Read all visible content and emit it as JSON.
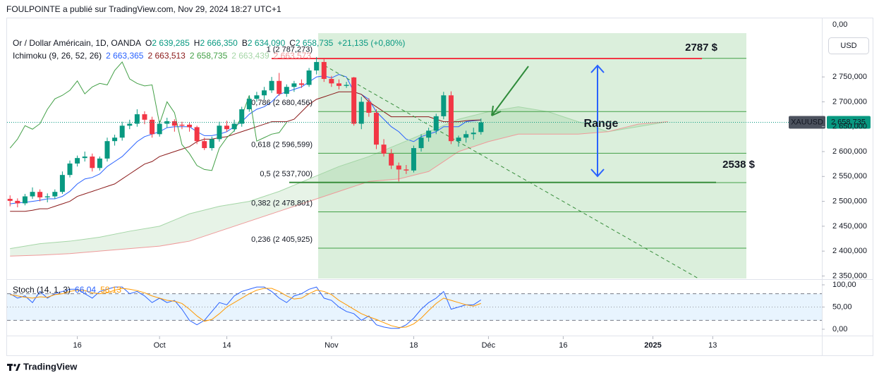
{
  "header": "FOULPOINTE a publié sur TradingView.com, Nov 29, 2024 18:27 UTC+1",
  "footer": "TradingView",
  "currency": "USD",
  "top_axis_label": "0,00",
  "chart_data": [
    {
      "type": "candlestick",
      "title": "Or / Dollar Américain, 1D, OANDA",
      "ohlc": [
        {
          "key": "O",
          "value": "2 639,285"
        },
        {
          "key": "H",
          "value": "2 666,350"
        },
        {
          "key": "B",
          "value": "2 634,090"
        },
        {
          "key": "C",
          "value": "2 658,735"
        }
      ],
      "change": "+21,135 (+0,80%)",
      "up_color": "#089981",
      "down_color": "#f23645",
      "open": [
        2505,
        2501,
        2496,
        2510,
        2519,
        2508,
        2510,
        2519,
        2553,
        2576,
        2587,
        2590,
        2567,
        2586,
        2621,
        2628,
        2652,
        2656,
        2675,
        2664,
        2635,
        2656,
        2661,
        2654,
        2654,
        2649,
        2621,
        2607,
        2625,
        2652,
        2645,
        2656,
        2685,
        2706,
        2713,
        2723,
        2742,
        2716,
        2730,
        2737,
        2734,
        2763,
        2780,
        2746,
        2737,
        2732,
        2749,
        2656,
        2700,
        2678,
        2614,
        2596,
        2572,
        2564,
        2562,
        2607,
        2628,
        2642,
        2671,
        2713,
        2621,
        2628,
        2635,
        2639.285
      ],
      "high": [
        2512,
        2506,
        2515,
        2528,
        2524,
        2516,
        2524,
        2560,
        2582,
        2592,
        2600,
        2596,
        2590,
        2628,
        2634,
        2660,
        2664,
        2685,
        2681,
        2670,
        2662,
        2668,
        2665,
        2660,
        2658,
        2652,
        2628,
        2630,
        2660,
        2662,
        2664,
        2690,
        2712,
        2720,
        2730,
        2750,
        2758,
        2735,
        2742,
        2745,
        2768,
        2790,
        2788,
        2752,
        2745,
        2740,
        2750,
        2710,
        2707,
        2685,
        2625,
        2605,
        2578,
        2573,
        2612,
        2635,
        2648,
        2676,
        2720,
        2721,
        2632,
        2642,
        2648,
        2666.35
      ],
      "low": [
        2490,
        2488,
        2492,
        2505,
        2500,
        2498,
        2505,
        2515,
        2548,
        2570,
        2580,
        2560,
        2562,
        2580,
        2612,
        2622,
        2645,
        2650,
        2655,
        2628,
        2630,
        2648,
        2640,
        2645,
        2640,
        2615,
        2603,
        2602,
        2620,
        2640,
        2640,
        2650,
        2680,
        2700,
        2705,
        2718,
        2712,
        2710,
        2720,
        2728,
        2730,
        2755,
        2740,
        2730,
        2725,
        2728,
        2652,
        2645,
        2670,
        2605,
        2590,
        2565,
        2540,
        2555,
        2558,
        2600,
        2620,
        2635,
        2665,
        2615,
        2610,
        2618,
        2624,
        2634.09
      ],
      "close": [
        2501,
        2496,
        2510,
        2519,
        2508,
        2510,
        2519,
        2553,
        2576,
        2587,
        2590,
        2567,
        2586,
        2621,
        2628,
        2652,
        2656,
        2675,
        2664,
        2635,
        2656,
        2661,
        2652,
        2652,
        2649,
        2621,
        2607,
        2625,
        2652,
        2645,
        2656,
        2685,
        2706,
        2713,
        2723,
        2742,
        2716,
        2730,
        2737,
        2734,
        2763,
        2780,
        2746,
        2737,
        2732,
        2734,
        2656,
        2700,
        2678,
        2614,
        2596,
        2572,
        2564,
        2562,
        2607,
        2628,
        2642,
        2671,
        2713,
        2621,
        2628,
        2635,
        2638,
        2658.735
      ],
      "xlim": [
        -0.4,
        108.6
      ],
      "xticks": [
        {
          "value": 9,
          "label": "16"
        },
        {
          "value": 20,
          "label": "Oct"
        },
        {
          "value": 29,
          "label": "14"
        },
        {
          "value": 43,
          "label": "Nov"
        },
        {
          "value": 54,
          "label": "18"
        },
        {
          "value": 64,
          "label": "Déc"
        },
        {
          "value": 74,
          "label": "16"
        },
        {
          "value": 86,
          "label": "2025"
        },
        {
          "value": 94,
          "label": "13"
        }
      ],
      "ylim": [
        2345,
        2838
      ],
      "yticks": [
        {
          "value": 2350,
          "label": "2 350,000"
        },
        {
          "value": 2400,
          "label": "2 400,000"
        },
        {
          "value": 2450,
          "label": "2 450,000"
        },
        {
          "value": 2500,
          "label": "2 500,000"
        },
        {
          "value": 2550,
          "label": "2 550,000"
        },
        {
          "value": 2600,
          "label": "2 600,000"
        },
        {
          "value": 2650,
          "label": "2 650,000"
        },
        {
          "value": 2700,
          "label": "2 700,000"
        },
        {
          "value": 2750,
          "label": "2 750,000"
        }
      ],
      "indicator": {
        "title": "Ichimoku (9, 26, 52, 26)",
        "series": [
          {
            "color": "#2962ff",
            "value_label": "2 663,365",
            "values": [
              2495,
              2497,
              2498,
              2500,
              2502,
              2505,
              2505,
              2510,
              2520,
              2535,
              2545,
              2548,
              2555,
              2570,
              2580,
              2590,
              2605,
              2620,
              2630,
              2635,
              2640,
              2648,
              2650,
              2650,
              2650,
              2640,
              2632,
              2632,
              2635,
              2640,
              2650,
              2660,
              2675,
              2685,
              2690,
              2700,
              2715,
              2720,
              2725,
              2730,
              2740,
              2750,
              2752,
              2748,
              2755,
              2750,
              2720,
              2715,
              2705,
              2680,
              2665,
              2650,
              2640,
              2625,
              2620,
              2630,
              2635,
              2640,
              2650,
              2650,
              2650,
              2660,
              2662,
              2663.365
            ]
          },
          {
            "color": "#8b1a1a",
            "value_label": "2 663,513",
            "values": [
              2480,
              2480,
              2480,
              2482,
              2485,
              2485,
              2490,
              2495,
              2500,
              2510,
              2515,
              2520,
              2525,
              2530,
              2535,
              2545,
              2555,
              2565,
              2575,
              2580,
              2590,
              2595,
              2600,
              2605,
              2610,
              2620,
              2625,
              2625,
              2628,
              2630,
              2635,
              2640,
              2645,
              2650,
              2655,
              2660,
              2660,
              2660,
              2665,
              2680,
              2695,
              2705,
              2710,
              2715,
              2720,
              2720,
              2720,
              2715,
              2700,
              2690,
              2680,
              2670,
              2670,
              2670,
              2670,
              2670,
              2670,
              2665,
              2660,
              2660,
              2660,
              2662,
              2663,
              2663.513
            ]
          },
          {
            "color": "#43a047",
            "value_label": "2 658,735",
            "values": [
              2607,
              2625,
              2652,
              2645,
              2656,
              2685,
              2706,
              2713,
              2723,
              2742,
              2716,
              2730,
              2737,
              2734,
              2763,
              2780,
              2746,
              2737,
              2732,
              2734,
              2656,
              2700,
              2678,
              2614,
              2596,
              2572,
              2564,
              2562,
              2607,
              2628,
              2642,
              2671,
              2713,
              2621,
              2628,
              2635,
              2638,
              2658.735
            ]
          },
          {
            "color": "#a5d6a7",
            "value_label": "2 663,439",
            "x": [
              0,
              4,
              8,
              12,
              16,
              20,
              24,
              28,
              32,
              36,
              40,
              44,
              48,
              52,
              56,
              60,
              64,
              68,
              72,
              76,
              80,
              84,
              88
            ],
            "values": [
              2405,
              2415,
              2420,
              2428,
              2440,
              2450,
              2475,
              2490,
              2500,
              2520,
              2545,
              2570,
              2590,
              2615,
              2640,
              2665,
              2680,
              2690,
              2680,
              2660,
              2640,
              2650,
              2660
            ]
          },
          {
            "color": "#ef9a9a",
            "value_label": "2 663,573",
            "x": [
              0,
              4,
              8,
              12,
              16,
              20,
              24,
              28,
              32,
              36,
              40,
              44,
              48,
              52,
              56,
              60,
              64,
              68,
              72,
              76,
              80,
              84,
              88
            ],
            "values": [
              2390,
              2392,
              2395,
              2400,
              2405,
              2410,
              2420,
              2440,
              2460,
              2480,
              2500,
              2520,
              2540,
              2545,
              2560,
              2600,
              2620,
              2635,
              2635,
              2635,
              2640,
              2655,
              2660
            ]
          }
        ]
      },
      "fib_levels": [
        {
          "value": 2787.273,
          "label": "1 (2 787,273)"
        },
        {
          "value": 2680.456,
          "label": "0,786 (2 680,456)"
        },
        {
          "value": 2596.599,
          "label": "0,618 (2 596,599)"
        },
        {
          "value": 2537.7,
          "label": "0,5 (2 537,700)"
        },
        {
          "value": 2478.801,
          "label": "0,382 (2 478,801)"
        },
        {
          "value": 2405.925,
          "label": "0,236 (2 405,925)"
        }
      ],
      "levels": [
        {
          "value": 2787,
          "label": "2787 $",
          "color": "#f23645"
        },
        {
          "value": 2538,
          "label": "2538 $",
          "color": "#388e3c"
        }
      ],
      "range_label": "Range",
      "price_tag": {
        "symbol": "XAUUSD",
        "value": 2658.735,
        "label": "2 658,735",
        "color": "#089981"
      }
    },
    {
      "type": "line",
      "title": "Stoch (14, 1, 3)",
      "xlim": [
        -0.4,
        108.6
      ],
      "ylim": [
        -12.7,
        109.5
      ],
      "yticks": [
        {
          "value": 100,
          "label": "100,00"
        },
        {
          "value": 50,
          "label": "50,00"
        },
        {
          "value": 0,
          "label": "0,00"
        }
      ],
      "bands": [
        20,
        80
      ],
      "series": [
        {
          "color": "#2962ff",
          "value_label": "66,04",
          "values": [
            80,
            70,
            75,
            60,
            85,
            70,
            80,
            85,
            90,
            90,
            80,
            70,
            85,
            90,
            95,
            95,
            80,
            85,
            75,
            60,
            70,
            60,
            65,
            45,
            20,
            10,
            20,
            40,
            60,
            55,
            75,
            85,
            90,
            95,
            95,
            85,
            70,
            60,
            75,
            80,
            90,
            95,
            70,
            65,
            50,
            40,
            35,
            20,
            30,
            10,
            5,
            2,
            2,
            10,
            25,
            45,
            60,
            70,
            85,
            45,
            50,
            55,
            55,
            66.04
          ]
        },
        {
          "color": "#ff9800",
          "value_label": "58,13",
          "values": [
            78,
            75,
            72,
            70,
            73,
            72,
            78,
            80,
            85,
            88,
            87,
            82,
            80,
            82,
            88,
            92,
            90,
            87,
            82,
            75,
            70,
            65,
            63,
            58,
            45,
            30,
            18,
            22,
            35,
            50,
            60,
            70,
            80,
            88,
            92,
            92,
            85,
            75,
            68,
            70,
            80,
            88,
            85,
            78,
            65,
            55,
            45,
            35,
            28,
            22,
            15,
            8,
            4,
            5,
            12,
            25,
            42,
            58,
            70,
            65,
            60,
            55,
            52,
            58.13
          ]
        }
      ]
    }
  ]
}
